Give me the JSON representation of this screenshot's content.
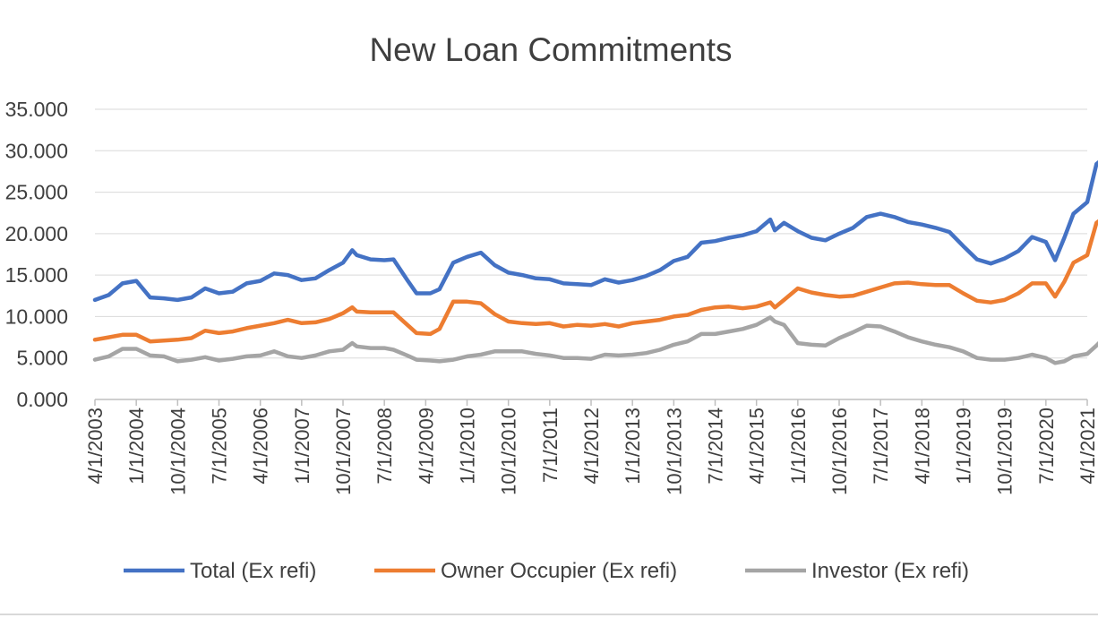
{
  "chart_data": {
    "type": "line",
    "title": "New Loan Commitments",
    "xlabel": "",
    "ylabel": "",
    "ylim": [
      0,
      35
    ],
    "y_ticks": [
      "0.000",
      "5.000",
      "10.000",
      "15.000",
      "20.000",
      "25.000",
      "30.000",
      "35.000"
    ],
    "x_ticks": [
      "4/1/2003",
      "1/1/2004",
      "10/1/2004",
      "7/1/2005",
      "4/1/2006",
      "1/1/2007",
      "10/1/2007",
      "7/1/2008",
      "4/1/2009",
      "1/1/2010",
      "10/1/2010",
      "7/1/2011",
      "4/1/2012",
      "1/1/2013",
      "10/1/2013",
      "7/1/2014",
      "4/1/2015",
      "1/1/2016",
      "10/1/2016",
      "7/1/2017",
      "4/1/2018",
      "1/1/2019",
      "10/1/2019",
      "7/1/2020",
      "4/1/2021"
    ],
    "grid": true,
    "legend_position": "bottom",
    "x_start": "2003-04",
    "x_end": "2021-04",
    "series": [
      {
        "name": "Total (Ex refi)",
        "color": "#4472C4",
        "points": [
          [
            "2003-04",
            12.0
          ],
          [
            "2003-07",
            12.6
          ],
          [
            "2003-10",
            14.0
          ],
          [
            "2004-01",
            14.3
          ],
          [
            "2004-04",
            12.3
          ],
          [
            "2004-07",
            12.2
          ],
          [
            "2004-10",
            12.0
          ],
          [
            "2005-01",
            12.3
          ],
          [
            "2005-04",
            13.4
          ],
          [
            "2005-07",
            12.8
          ],
          [
            "2005-10",
            13.0
          ],
          [
            "2006-01",
            14.0
          ],
          [
            "2006-04",
            14.3
          ],
          [
            "2006-07",
            15.2
          ],
          [
            "2006-10",
            15.0
          ],
          [
            "2007-01",
            14.4
          ],
          [
            "2007-04",
            14.6
          ],
          [
            "2007-07",
            15.6
          ],
          [
            "2007-10",
            16.5
          ],
          [
            "2007-12",
            18.0
          ],
          [
            "2008-01",
            17.4
          ],
          [
            "2008-04",
            16.9
          ],
          [
            "2008-07",
            16.8
          ],
          [
            "2008-09",
            16.9
          ],
          [
            "2008-12",
            14.4
          ],
          [
            "2009-02",
            12.8
          ],
          [
            "2009-05",
            12.8
          ],
          [
            "2009-07",
            13.3
          ],
          [
            "2009-10",
            16.5
          ],
          [
            "2010-01",
            17.2
          ],
          [
            "2010-04",
            17.7
          ],
          [
            "2010-07",
            16.2
          ],
          [
            "2010-10",
            15.3
          ],
          [
            "2011-01",
            15.0
          ],
          [
            "2011-04",
            14.6
          ],
          [
            "2011-07",
            14.5
          ],
          [
            "2011-10",
            14.0
          ],
          [
            "2012-01",
            13.9
          ],
          [
            "2012-04",
            13.8
          ],
          [
            "2012-07",
            14.5
          ],
          [
            "2012-10",
            14.1
          ],
          [
            "2013-01",
            14.4
          ],
          [
            "2013-04",
            14.9
          ],
          [
            "2013-07",
            15.6
          ],
          [
            "2013-10",
            16.7
          ],
          [
            "2014-01",
            17.2
          ],
          [
            "2014-04",
            18.9
          ],
          [
            "2014-07",
            19.1
          ],
          [
            "2014-10",
            19.5
          ],
          [
            "2015-01",
            19.8
          ],
          [
            "2015-04",
            20.3
          ],
          [
            "2015-07",
            21.7
          ],
          [
            "2015-08",
            20.4
          ],
          [
            "2015-10",
            21.3
          ],
          [
            "2016-01",
            20.3
          ],
          [
            "2016-04",
            19.5
          ],
          [
            "2016-07",
            19.2
          ],
          [
            "2016-10",
            20.0
          ],
          [
            "2017-01",
            20.7
          ],
          [
            "2017-04",
            22.0
          ],
          [
            "2017-07",
            22.4
          ],
          [
            "2017-10",
            22.0
          ],
          [
            "2018-01",
            21.4
          ],
          [
            "2018-04",
            21.1
          ],
          [
            "2018-07",
            20.7
          ],
          [
            "2018-10",
            20.2
          ],
          [
            "2019-01",
            18.5
          ],
          [
            "2019-04",
            16.9
          ],
          [
            "2019-07",
            16.4
          ],
          [
            "2019-10",
            17.0
          ],
          [
            "2020-01",
            17.9
          ],
          [
            "2020-04",
            19.6
          ],
          [
            "2020-07",
            19.0
          ],
          [
            "2020-09",
            16.8
          ],
          [
            "2020-11",
            19.5
          ],
          [
            "2021-01",
            22.4
          ],
          [
            "2021-04",
            23.8
          ],
          [
            "2021-06",
            28.4
          ],
          [
            "2021-08",
            29.3
          ],
          [
            "2021-10",
            31.0
          ]
        ]
      },
      {
        "name": "Owner Occupier (Ex refi)",
        "color": "#ED7D31",
        "points": [
          [
            "2003-04",
            7.2
          ],
          [
            "2003-07",
            7.5
          ],
          [
            "2003-10",
            7.8
          ],
          [
            "2004-01",
            7.8
          ],
          [
            "2004-04",
            7.0
          ],
          [
            "2004-07",
            7.1
          ],
          [
            "2004-10",
            7.2
          ],
          [
            "2005-01",
            7.4
          ],
          [
            "2005-04",
            8.3
          ],
          [
            "2005-07",
            8.0
          ],
          [
            "2005-10",
            8.2
          ],
          [
            "2006-01",
            8.6
          ],
          [
            "2006-04",
            8.9
          ],
          [
            "2006-07",
            9.2
          ],
          [
            "2006-10",
            9.6
          ],
          [
            "2007-01",
            9.2
          ],
          [
            "2007-04",
            9.3
          ],
          [
            "2007-07",
            9.7
          ],
          [
            "2007-10",
            10.4
          ],
          [
            "2007-12",
            11.1
          ],
          [
            "2008-01",
            10.6
          ],
          [
            "2008-04",
            10.5
          ],
          [
            "2008-07",
            10.5
          ],
          [
            "2008-09",
            10.5
          ],
          [
            "2008-12",
            9.0
          ],
          [
            "2009-02",
            8.0
          ],
          [
            "2009-05",
            7.9
          ],
          [
            "2009-07",
            8.5
          ],
          [
            "2009-10",
            11.8
          ],
          [
            "2010-01",
            11.8
          ],
          [
            "2010-04",
            11.6
          ],
          [
            "2010-07",
            10.3
          ],
          [
            "2010-10",
            9.4
          ],
          [
            "2011-01",
            9.2
          ],
          [
            "2011-04",
            9.1
          ],
          [
            "2011-07",
            9.2
          ],
          [
            "2011-10",
            8.8
          ],
          [
            "2012-01",
            9.0
          ],
          [
            "2012-04",
            8.9
          ],
          [
            "2012-07",
            9.1
          ],
          [
            "2012-10",
            8.8
          ],
          [
            "2013-01",
            9.2
          ],
          [
            "2013-04",
            9.4
          ],
          [
            "2013-07",
            9.6
          ],
          [
            "2013-10",
            10.0
          ],
          [
            "2014-01",
            10.2
          ],
          [
            "2014-04",
            10.8
          ],
          [
            "2014-07",
            11.1
          ],
          [
            "2014-10",
            11.2
          ],
          [
            "2015-01",
            11.0
          ],
          [
            "2015-04",
            11.2
          ],
          [
            "2015-07",
            11.7
          ],
          [
            "2015-08",
            11.1
          ],
          [
            "2015-10",
            12.0
          ],
          [
            "2016-01",
            13.4
          ],
          [
            "2016-04",
            12.9
          ],
          [
            "2016-07",
            12.6
          ],
          [
            "2016-10",
            12.4
          ],
          [
            "2017-01",
            12.5
          ],
          [
            "2017-04",
            13.0
          ],
          [
            "2017-07",
            13.5
          ],
          [
            "2017-10",
            14.0
          ],
          [
            "2018-01",
            14.1
          ],
          [
            "2018-04",
            13.9
          ],
          [
            "2018-07",
            13.8
          ],
          [
            "2018-10",
            13.8
          ],
          [
            "2019-01",
            12.8
          ],
          [
            "2019-04",
            11.9
          ],
          [
            "2019-07",
            11.7
          ],
          [
            "2019-10",
            12.0
          ],
          [
            "2020-01",
            12.8
          ],
          [
            "2020-04",
            14.0
          ],
          [
            "2020-07",
            14.0
          ],
          [
            "2020-09",
            12.4
          ],
          [
            "2020-11",
            14.2
          ],
          [
            "2021-01",
            16.5
          ],
          [
            "2021-04",
            17.4
          ],
          [
            "2021-06",
            21.3
          ],
          [
            "2021-08",
            22.1
          ],
          [
            "2021-10",
            23.0
          ]
        ]
      },
      {
        "name": "Investor (Ex refi)",
        "color": "#A5A5A5",
        "points": [
          [
            "2003-04",
            4.8
          ],
          [
            "2003-07",
            5.2
          ],
          [
            "2003-10",
            6.1
          ],
          [
            "2004-01",
            6.1
          ],
          [
            "2004-04",
            5.3
          ],
          [
            "2004-07",
            5.2
          ],
          [
            "2004-10",
            4.6
          ],
          [
            "2005-01",
            4.8
          ],
          [
            "2005-04",
            5.1
          ],
          [
            "2005-07",
            4.7
          ],
          [
            "2005-10",
            4.9
          ],
          [
            "2006-01",
            5.2
          ],
          [
            "2006-04",
            5.3
          ],
          [
            "2006-07",
            5.8
          ],
          [
            "2006-10",
            5.2
          ],
          [
            "2007-01",
            5.0
          ],
          [
            "2007-04",
            5.3
          ],
          [
            "2007-07",
            5.8
          ],
          [
            "2007-10",
            6.0
          ],
          [
            "2007-12",
            6.8
          ],
          [
            "2008-01",
            6.4
          ],
          [
            "2008-04",
            6.2
          ],
          [
            "2008-07",
            6.2
          ],
          [
            "2008-09",
            6.0
          ],
          [
            "2008-12",
            5.3
          ],
          [
            "2009-02",
            4.8
          ],
          [
            "2009-05",
            4.7
          ],
          [
            "2009-07",
            4.6
          ],
          [
            "2009-10",
            4.8
          ],
          [
            "2010-01",
            5.2
          ],
          [
            "2010-04",
            5.4
          ],
          [
            "2010-07",
            5.8
          ],
          [
            "2010-10",
            5.8
          ],
          [
            "2011-01",
            5.8
          ],
          [
            "2011-04",
            5.5
          ],
          [
            "2011-07",
            5.3
          ],
          [
            "2011-10",
            5.0
          ],
          [
            "2012-01",
            5.0
          ],
          [
            "2012-04",
            4.9
          ],
          [
            "2012-07",
            5.4
          ],
          [
            "2012-10",
            5.3
          ],
          [
            "2013-01",
            5.4
          ],
          [
            "2013-04",
            5.6
          ],
          [
            "2013-07",
            6.0
          ],
          [
            "2013-10",
            6.6
          ],
          [
            "2014-01",
            7.0
          ],
          [
            "2014-04",
            7.9
          ],
          [
            "2014-07",
            7.9
          ],
          [
            "2014-10",
            8.2
          ],
          [
            "2015-01",
            8.5
          ],
          [
            "2015-04",
            9.0
          ],
          [
            "2015-07",
            9.9
          ],
          [
            "2015-08",
            9.4
          ],
          [
            "2015-10",
            9.0
          ],
          [
            "2016-01",
            6.8
          ],
          [
            "2016-04",
            6.6
          ],
          [
            "2016-07",
            6.5
          ],
          [
            "2016-10",
            7.4
          ],
          [
            "2017-01",
            8.1
          ],
          [
            "2017-04",
            8.9
          ],
          [
            "2017-07",
            8.8
          ],
          [
            "2017-10",
            8.2
          ],
          [
            "2018-01",
            7.5
          ],
          [
            "2018-04",
            7.0
          ],
          [
            "2018-07",
            6.6
          ],
          [
            "2018-10",
            6.3
          ],
          [
            "2019-01",
            5.8
          ],
          [
            "2019-04",
            5.0
          ],
          [
            "2019-07",
            4.8
          ],
          [
            "2019-10",
            4.8
          ],
          [
            "2020-01",
            5.0
          ],
          [
            "2020-04",
            5.4
          ],
          [
            "2020-07",
            5.0
          ],
          [
            "2020-09",
            4.4
          ],
          [
            "2020-11",
            4.6
          ],
          [
            "2021-01",
            5.2
          ],
          [
            "2021-04",
            5.5
          ],
          [
            "2021-06",
            6.5
          ],
          [
            "2021-08",
            7.6
          ],
          [
            "2021-10",
            8.0
          ]
        ]
      }
    ]
  }
}
